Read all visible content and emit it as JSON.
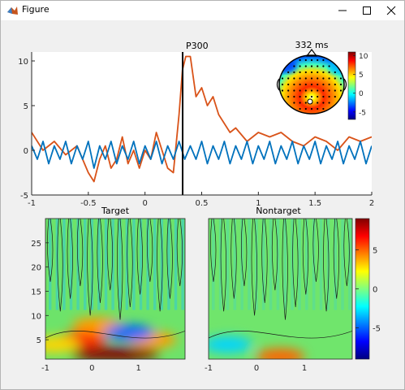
{
  "window": {
    "title": "Figure"
  },
  "erp_plot": {
    "xticks": [
      "-1",
      "-0.5",
      "0",
      "0.5",
      "1",
      "1.5",
      "2"
    ],
    "yticks": [
      "-5",
      "0",
      "5",
      "10"
    ],
    "annotation": "P300"
  },
  "topomap": {
    "title": "332 ms",
    "colorbar_ticks": [
      "10",
      "5",
      "0",
      "-5"
    ]
  },
  "tf_target": {
    "title": "Target",
    "xticks": [
      "-1",
      "0",
      "1"
    ],
    "yticks": [
      "25",
      "20",
      "15",
      "10",
      "5"
    ]
  },
  "tf_nontarget": {
    "title": "Nontarget",
    "xticks": [
      "-1",
      "0",
      "1"
    ]
  },
  "tf_colorbar": {
    "ticks": [
      "5",
      "0",
      "-5"
    ]
  },
  "chart_data": [
    {
      "type": "line",
      "title": "",
      "xlim": [
        -1,
        2
      ],
      "ylim": [
        -5,
        11
      ],
      "grid": false,
      "vertical_marker_x": 0.332,
      "series": [
        {
          "color": "#d95319",
          "x": [
            -1,
            -0.9,
            -0.8,
            -0.7,
            -0.6,
            -0.55,
            -0.5,
            -0.45,
            -0.4,
            -0.35,
            -0.3,
            -0.25,
            -0.2,
            -0.15,
            -0.1,
            -0.05,
            0,
            0.05,
            0.1,
            0.15,
            0.2,
            0.25,
            0.3,
            0.33,
            0.36,
            0.4,
            0.45,
            0.5,
            0.55,
            0.6,
            0.65,
            0.7,
            0.75,
            0.8,
            0.9,
            1,
            1.1,
            1.2,
            1.3,
            1.4,
            1.5,
            1.6,
            1.7,
            1.8,
            1.9,
            2
          ],
          "y": [
            2,
            0,
            1,
            -0.5,
            0.5,
            -1,
            -2.5,
            -3.5,
            -1,
            0.5,
            -2,
            -1,
            1.5,
            -1.5,
            0,
            -2,
            0,
            -1,
            2,
            0,
            -2,
            -2.5,
            4,
            9,
            10.5,
            10.5,
            6,
            7,
            5,
            6,
            4,
            3,
            2,
            2.5,
            1,
            2,
            1.5,
            2,
            1,
            0.5,
            1.5,
            1,
            0,
            1.5,
            1,
            1.5
          ]
        },
        {
          "color": "#0072bd",
          "x": [
            -1,
            -0.95,
            -0.9,
            -0.85,
            -0.8,
            -0.75,
            -0.7,
            -0.65,
            -0.6,
            -0.55,
            -0.5,
            -0.45,
            -0.4,
            -0.35,
            -0.3,
            -0.25,
            -0.2,
            -0.15,
            -0.1,
            -0.05,
            0,
            0.05,
            0.1,
            0.15,
            0.2,
            0.25,
            0.3,
            0.35,
            0.4,
            0.45,
            0.5,
            0.55,
            0.6,
            0.65,
            0.7,
            0.75,
            0.8,
            0.85,
            0.9,
            0.95,
            1,
            1.05,
            1.1,
            1.15,
            1.2,
            1.25,
            1.3,
            1.35,
            1.4,
            1.45,
            1.5,
            1.55,
            1.6,
            1.65,
            1.7,
            1.75,
            1.8,
            1.85,
            1.9,
            1.95,
            2
          ],
          "y": [
            0.5,
            -1,
            1,
            -1.5,
            0.5,
            -1,
            1,
            -1.5,
            0.5,
            -1,
            1,
            -2,
            0.5,
            -1,
            1,
            -1.5,
            0.5,
            -1,
            1,
            -1.5,
            0.5,
            -1,
            1,
            -1.5,
            0.5,
            -1,
            1,
            -1,
            0.5,
            -1,
            1,
            -1.5,
            0.5,
            -1,
            1,
            -1.5,
            0.5,
            -1,
            1,
            -1.5,
            0.5,
            -1,
            1,
            -1.5,
            0.5,
            -1,
            1,
            -1.5,
            0.5,
            -1,
            1,
            -1.5,
            0.5,
            -1,
            1,
            -1.5,
            0.5,
            -1,
            1,
            -1.5,
            0.5
          ]
        }
      ]
    },
    {
      "type": "heatmap",
      "title": "Target",
      "xlim": [
        -1,
        2
      ],
      "ylim": [
        1,
        30
      ],
      "blobs": [
        {
          "x": 0.5,
          "y": 2,
          "v": 9
        },
        {
          "x": -0.2,
          "y": 5,
          "v": 6
        },
        {
          "x": 0.1,
          "y": 8,
          "v": 4
        },
        {
          "x": 1.3,
          "y": 5,
          "v": 4
        },
        {
          "x": 0.8,
          "y": 6.5,
          "v": -5
        },
        {
          "x": -0.8,
          "y": 4,
          "v": 3
        }
      ]
    },
    {
      "type": "heatmap",
      "title": "Nontarget",
      "xlim": [
        -1,
        2
      ],
      "ylim": [
        1,
        30
      ],
      "blobs": [
        {
          "x": 0.5,
          "y": 1.5,
          "v": 5
        },
        {
          "x": -0.6,
          "y": 4,
          "v": -3
        }
      ]
    }
  ]
}
